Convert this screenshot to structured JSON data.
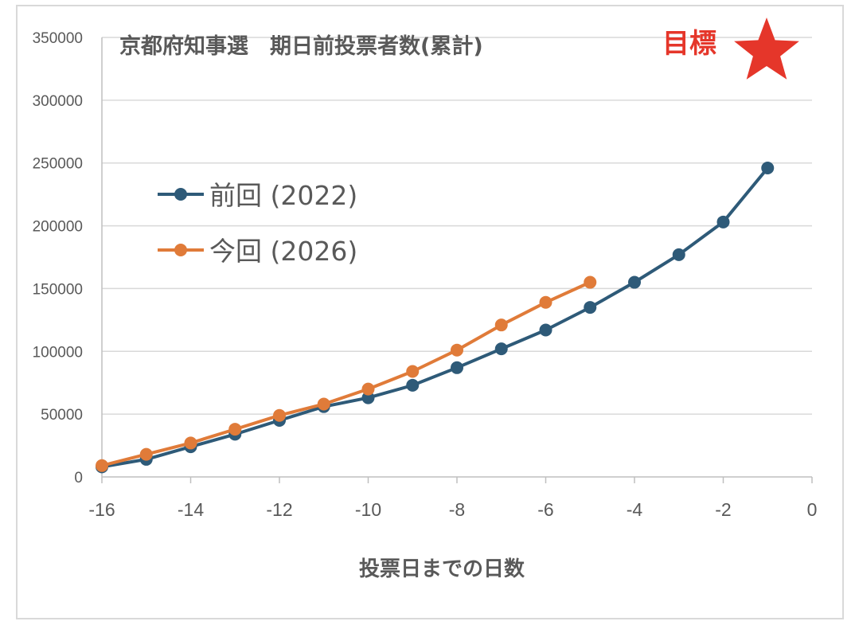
{
  "chart_data": {
    "type": "line",
    "title": "京都府知事選　期日前投票者数(累計)",
    "xlabel": "投票日までの日数",
    "ylabel": "",
    "xlim": [
      -16,
      0
    ],
    "ylim": [
      0,
      350000
    ],
    "x_ticks": [
      "-16",
      "-14",
      "-12",
      "-10",
      "-8",
      "-6",
      "-4",
      "-2",
      "0"
    ],
    "y_ticks": [
      "0",
      "50000",
      "100000",
      "150000",
      "200000",
      "250000",
      "300000",
      "350000"
    ],
    "grid": true,
    "legend_position": "left",
    "series": [
      {
        "name": "前回 (2022)",
        "color": "#2e5a78",
        "x": [
          -16,
          -15,
          -14,
          -13,
          -12,
          -11,
          -10,
          -9,
          -8,
          -7,
          -6,
          -5,
          -4,
          -3,
          -2,
          -1
        ],
        "y": [
          8000,
          14000,
          24000,
          34000,
          45000,
          56000,
          63000,
          73000,
          87000,
          102000,
          117000,
          135000,
          155000,
          177000,
          203000,
          246000
        ]
      },
      {
        "name": "今回 (2026)",
        "color": "#e07b39",
        "x": [
          -16,
          -15,
          -14,
          -13,
          -12,
          -11,
          -10,
          -9,
          -8,
          -7,
          -6,
          -5
        ],
        "y": [
          9000,
          18000,
          27000,
          38000,
          49000,
          58000,
          70000,
          84000,
          101000,
          121000,
          139000,
          155000
        ]
      }
    ],
    "annotation": {
      "text": "目標",
      "color": "#e5362a",
      "icon": "star-icon"
    }
  }
}
